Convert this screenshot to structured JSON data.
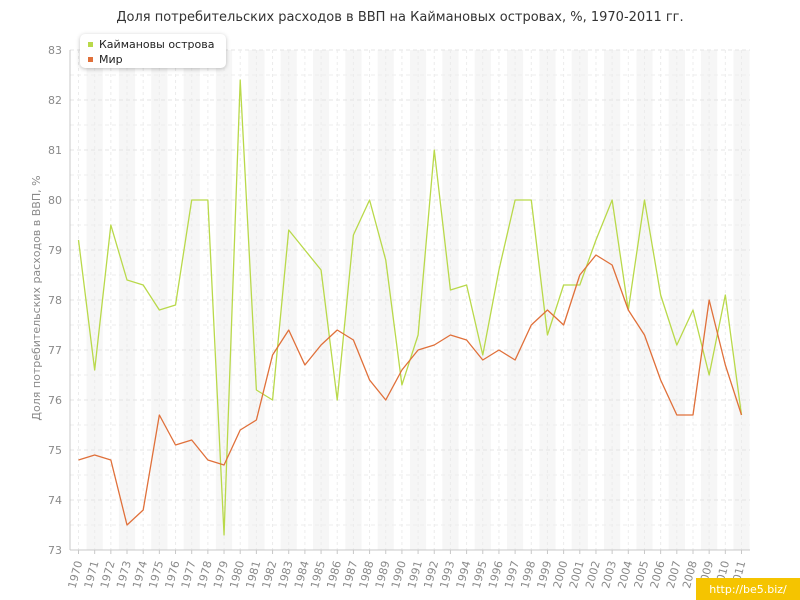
{
  "title": "Доля потребительских расходов в ВВП на Каймановых островах, %, 1970-2011 гг.",
  "watermark": "http://be5.biz/",
  "chart_data": {
    "type": "line",
    "title": "Доля потребительских расходов в ВВП на Каймановых островах, %, 1970-2011 гг.",
    "xlabel": "",
    "ylabel": "Доля потребительских расходов в ВВП, %",
    "ylim": [
      73,
      83
    ],
    "yticks": [
      73,
      74,
      75,
      76,
      77,
      78,
      79,
      80,
      81,
      82,
      83
    ],
    "grid": true,
    "legend_position": "top-left",
    "x": [
      1970,
      1971,
      1972,
      1973,
      1974,
      1975,
      1976,
      1977,
      1978,
      1979,
      1980,
      1981,
      1982,
      1983,
      1984,
      1985,
      1986,
      1987,
      1988,
      1989,
      1990,
      1991,
      1992,
      1993,
      1994,
      1995,
      1996,
      1997,
      1998,
      1999,
      2000,
      2001,
      2002,
      2003,
      2004,
      2005,
      2006,
      2007,
      2008,
      2009,
      2010,
      2011
    ],
    "series": [
      {
        "name": "Каймановы острова",
        "color": "#b9d94a",
        "values": [
          79.2,
          76.6,
          79.5,
          78.4,
          78.3,
          77.8,
          77.9,
          80.0,
          80.0,
          73.3,
          82.4,
          76.2,
          76.0,
          79.4,
          79.0,
          78.6,
          76.0,
          79.3,
          80.0,
          78.8,
          76.3,
          77.3,
          81.0,
          78.2,
          78.3,
          76.9,
          78.6,
          80.0,
          80.0,
          77.3,
          78.3,
          78.3,
          79.2,
          80.0,
          77.8,
          80.0,
          78.1,
          77.1,
          77.8,
          76.5,
          78.1,
          75.7
        ]
      },
      {
        "name": "Мир",
        "color": "#e0703a",
        "values": [
          74.8,
          74.9,
          74.8,
          73.5,
          73.8,
          75.7,
          75.1,
          75.2,
          74.8,
          74.7,
          75.4,
          75.6,
          76.9,
          77.4,
          76.7,
          77.1,
          77.4,
          77.2,
          76.4,
          76.0,
          76.6,
          77.0,
          77.1,
          77.3,
          77.2,
          76.8,
          77.0,
          76.8,
          77.5,
          77.8,
          77.5,
          78.5,
          78.9,
          78.7,
          77.8,
          77.3,
          76.4,
          75.7,
          75.7,
          78.0,
          76.7,
          75.7
        ]
      }
    ]
  }
}
